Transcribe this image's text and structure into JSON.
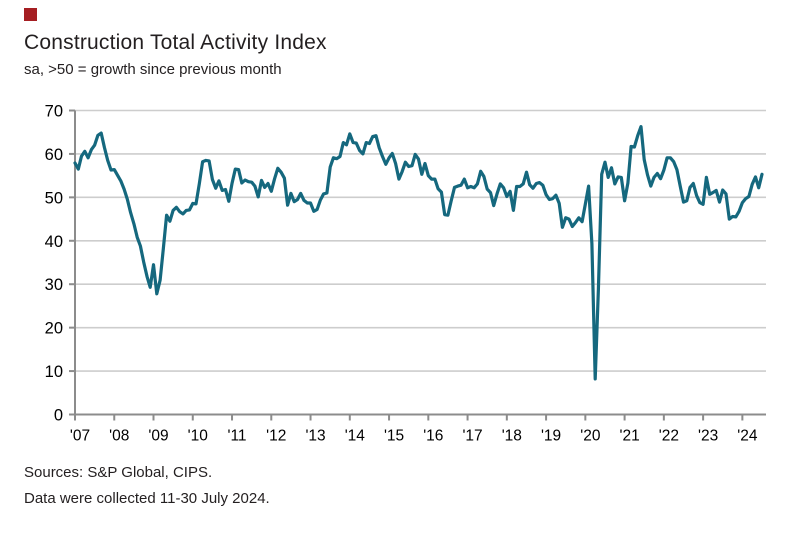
{
  "branding": {
    "logo_color": "#a51e22"
  },
  "header": {
    "title": "Construction Total Activity Index",
    "subtitle": "sa, >50 = growth since previous month"
  },
  "footer": {
    "sources": "Sources: S&P Global, CIPS.",
    "collected": "Data were collected 11-30 July 2024."
  },
  "chart_data": {
    "type": "line",
    "title": "Construction Total Activity Index",
    "subtitle": "sa, >50 = growth since previous month",
    "x_start": "2007-01",
    "x_end": "2024-07",
    "x_tick_labels": [
      "'07",
      "'08",
      "'09",
      "'10",
      "'11",
      "'12",
      "'13",
      "'14",
      "'15",
      "'16",
      "'17",
      "'18",
      "'19",
      "'20",
      "'21",
      "'22",
      "'23",
      "'24"
    ],
    "y_ticks": [
      0,
      10,
      20,
      30,
      40,
      50,
      60,
      70
    ],
    "ylim": [
      0,
      70
    ],
    "grid": "horizontal-light-gray",
    "legend": "none",
    "line_color": "#15687e",
    "axis_color": "#8c8c8c",
    "grid_color": "#cdcdcd",
    "tick_label_color": "#000000",
    "series": [
      {
        "name": "Construction Total Activity Index (sa)",
        "values": [
          57.9,
          56.5,
          59.5,
          60.6,
          59.1,
          61.0,
          62.0,
          64.3,
          64.8,
          61.5,
          58.5,
          56.3,
          56.4,
          55.1,
          53.8,
          51.9,
          49.6,
          46.5,
          43.9,
          40.8,
          38.8,
          35.1,
          31.8,
          29.3,
          34.5,
          27.8,
          30.9,
          38.1,
          45.9,
          44.5,
          47.0,
          47.7,
          46.7,
          46.2,
          47.0,
          47.1,
          48.6,
          48.5,
          53.1,
          58.2,
          58.5,
          58.4,
          54.1,
          52.1,
          53.8,
          51.6,
          51.8,
          49.1,
          53.2,
          56.5,
          56.4,
          53.3,
          54.0,
          53.6,
          53.5,
          52.6,
          50.1,
          53.9,
          52.3,
          53.2,
          51.4,
          54.3,
          56.7,
          55.8,
          54.4,
          48.2,
          50.9,
          49.0,
          49.5,
          50.9,
          49.3,
          48.7,
          48.7,
          46.8,
          47.2,
          49.4,
          50.8,
          51.0,
          57.0,
          59.1,
          58.9,
          59.4,
          62.6,
          62.1,
          64.6,
          62.6,
          62.5,
          60.8,
          60.0,
          62.6,
          62.4,
          64.0,
          64.2,
          61.4,
          59.4,
          57.6,
          59.1,
          60.1,
          57.8,
          54.2,
          55.9,
          58.1,
          57.1,
          57.3,
          59.9,
          58.8,
          55.3,
          57.8,
          55.0,
          54.2,
          54.2,
          52.0,
          51.2,
          46.0,
          45.9,
          49.2,
          52.3,
          52.6,
          52.8,
          54.2,
          52.2,
          52.5,
          52.2,
          53.1,
          56.0,
          54.8,
          51.9,
          51.1,
          48.1,
          50.8,
          53.1,
          52.2,
          50.2,
          51.4,
          47.0,
          52.5,
          52.5,
          53.1,
          55.8,
          52.9,
          52.1,
          53.2,
          53.4,
          52.8,
          50.6,
          49.5,
          49.7,
          50.5,
          48.6,
          43.1,
          45.3,
          45.0,
          43.3,
          44.2,
          45.3,
          44.4,
          48.4,
          52.6,
          39.3,
          8.2,
          28.9,
          55.3,
          58.1,
          54.6,
          56.8,
          53.1,
          54.7,
          54.6,
          49.2,
          53.3,
          61.7,
          61.6,
          64.2,
          66.3,
          58.7,
          55.2,
          52.6,
          54.6,
          55.5,
          54.3,
          56.3,
          59.1,
          59.1,
          58.2,
          56.4,
          52.6,
          48.9,
          49.2,
          52.3,
          53.2,
          50.4,
          48.8,
          48.4,
          54.6,
          50.7,
          51.1,
          51.6,
          48.9,
          51.7,
          50.8,
          45.0,
          45.6,
          45.5,
          46.8,
          48.8,
          49.7,
          50.2,
          53.0,
          54.7,
          52.2,
          55.3
        ]
      }
    ]
  }
}
